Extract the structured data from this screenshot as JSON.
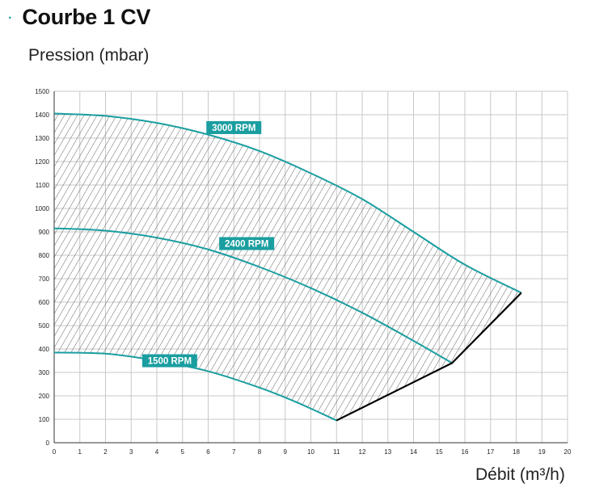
{
  "page": {
    "bullet": "·",
    "title": "Courbe 1 CV"
  },
  "chart_data": {
    "type": "line",
    "title": "Courbe 1 CV",
    "ylabel": "Pression (mbar)",
    "xlabel": "Débit (m³/h)",
    "xlim": [
      0,
      20
    ],
    "ylim": [
      0,
      1500
    ],
    "xticks": [
      0,
      1,
      2,
      3,
      4,
      5,
      6,
      7,
      8,
      9,
      10,
      11,
      12,
      13,
      14,
      15,
      16,
      17,
      18,
      19,
      20
    ],
    "yticks": [
      0,
      100,
      200,
      300,
      400,
      500,
      600,
      700,
      800,
      900,
      1000,
      1100,
      1200,
      1300,
      1400,
      1500
    ],
    "grid": true,
    "colors": {
      "curve": "#1a9ea0",
      "label_bg": "#1a9ea0",
      "boundary": "#000000",
      "grid": "#c8c8c8",
      "hatch": "#555555"
    },
    "series": [
      {
        "name": "3000 RPM",
        "x": [
          0,
          2,
          4,
          6,
          8,
          10,
          12,
          14,
          16,
          18.2
        ],
        "y": [
          1405,
          1395,
          1365,
          1315,
          1245,
          1150,
          1040,
          900,
          760,
          640
        ]
      },
      {
        "name": "2400 RPM",
        "x": [
          0,
          2,
          4,
          6,
          8,
          10,
          12,
          14,
          15.5
        ],
        "y": [
          915,
          905,
          875,
          825,
          750,
          660,
          555,
          435,
          340
        ]
      },
      {
        "name": "1500 RPM",
        "x": [
          0,
          2,
          4,
          6,
          8,
          9.5,
          11
        ],
        "y": [
          385,
          380,
          350,
          305,
          235,
          170,
          95
        ]
      }
    ],
    "boundary": {
      "x": [
        11,
        15.5,
        18.2
      ],
      "y": [
        95,
        340,
        640
      ]
    },
    "annotations": [
      {
        "text": "3000 RPM",
        "x": 7,
        "y": 1345
      },
      {
        "text": "2400 RPM",
        "x": 7.5,
        "y": 850
      },
      {
        "text": "1500 RPM",
        "x": 4.5,
        "y": 350
      }
    ]
  }
}
